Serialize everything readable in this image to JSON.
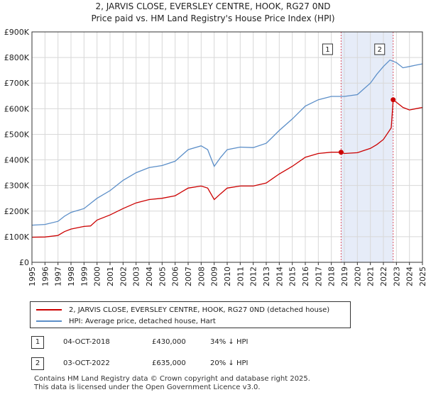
{
  "header": {
    "title": "2, JARVIS CLOSE, EVERSLEY CENTRE, HOOK, RG27 0ND",
    "subtitle": "Price paid vs. HM Land Registry's House Price Index (HPI)"
  },
  "chart_data": {
    "type": "line",
    "x_range": [
      1995,
      2025
    ],
    "y_range": [
      0,
      900000
    ],
    "x_ticks": [
      "1995",
      "1996",
      "1997",
      "1998",
      "1999",
      "2000",
      "2001",
      "2002",
      "2003",
      "2004",
      "2005",
      "2006",
      "2007",
      "2008",
      "2009",
      "2010",
      "2011",
      "2012",
      "2013",
      "2014",
      "2015",
      "2016",
      "2017",
      "2018",
      "2019",
      "2020",
      "2021",
      "2022",
      "2023",
      "2024",
      "2025"
    ],
    "y_ticks": [
      {
        "value": 0,
        "label": "£0"
      },
      {
        "value": 100000,
        "label": "£100K"
      },
      {
        "value": 200000,
        "label": "£200K"
      },
      {
        "value": 300000,
        "label": "£300K"
      },
      {
        "value": 400000,
        "label": "£400K"
      },
      {
        "value": 500000,
        "label": "£500K"
      },
      {
        "value": 600000,
        "label": "£600K"
      },
      {
        "value": 700000,
        "label": "£700K"
      },
      {
        "value": 800000,
        "label": "£800K"
      },
      {
        "value": 900000,
        "label": "£900K"
      }
    ],
    "shaded_period": [
      2018.75,
      2022.75
    ],
    "colors": {
      "property": "#cc0000",
      "hpi": "#5b8ec8",
      "shade": "#e6ecf8",
      "marker_line": "#dd5566"
    },
    "series": [
      {
        "name": "2, JARVIS CLOSE, EVERSLEY CENTRE, HOOK, RG27 0ND (detached house)",
        "color": "#cc0000",
        "points": [
          [
            1995,
            98000
          ],
          [
            1996,
            99000
          ],
          [
            1997,
            105000
          ],
          [
            1997.5,
            120000
          ],
          [
            1998,
            130000
          ],
          [
            1999,
            140000
          ],
          [
            1999.5,
            142000
          ],
          [
            2000,
            165000
          ],
          [
            2001,
            185000
          ],
          [
            2002,
            210000
          ],
          [
            2003,
            232000
          ],
          [
            2004,
            245000
          ],
          [
            2005,
            250000
          ],
          [
            2006,
            260000
          ],
          [
            2007,
            290000
          ],
          [
            2008,
            298000
          ],
          [
            2008.5,
            290000
          ],
          [
            2009,
            245000
          ],
          [
            2009.5,
            268000
          ],
          [
            2010,
            290000
          ],
          [
            2011,
            298000
          ],
          [
            2012,
            298000
          ],
          [
            2013,
            310000
          ],
          [
            2014,
            345000
          ],
          [
            2015,
            375000
          ],
          [
            2016,
            410000
          ],
          [
            2017,
            425000
          ],
          [
            2018,
            430000
          ],
          [
            2018.75,
            430000
          ],
          [
            2019,
            425000
          ],
          [
            2020,
            428000
          ],
          [
            2021,
            445000
          ],
          [
            2021.5,
            460000
          ],
          [
            2022,
            480000
          ],
          [
            2022.6,
            525000
          ],
          [
            2022.75,
            635000
          ],
          [
            2023,
            625000
          ],
          [
            2023.5,
            605000
          ],
          [
            2024,
            595000
          ],
          [
            2024.5,
            600000
          ],
          [
            2025,
            605000
          ]
        ]
      },
      {
        "name": "HPI: Average price, detached house, Hart",
        "color": "#5b8ec8",
        "points": [
          [
            1995,
            145000
          ],
          [
            1996,
            148000
          ],
          [
            1997,
            160000
          ],
          [
            1997.5,
            180000
          ],
          [
            1998,
            195000
          ],
          [
            1999,
            210000
          ],
          [
            2000,
            250000
          ],
          [
            2001,
            280000
          ],
          [
            2002,
            320000
          ],
          [
            2003,
            350000
          ],
          [
            2004,
            370000
          ],
          [
            2005,
            378000
          ],
          [
            2006,
            395000
          ],
          [
            2007,
            440000
          ],
          [
            2008,
            455000
          ],
          [
            2008.5,
            440000
          ],
          [
            2009,
            375000
          ],
          [
            2009.5,
            410000
          ],
          [
            2010,
            440000
          ],
          [
            2011,
            450000
          ],
          [
            2012,
            448000
          ],
          [
            2013,
            465000
          ],
          [
            2014,
            515000
          ],
          [
            2015,
            560000
          ],
          [
            2016,
            610000
          ],
          [
            2017,
            635000
          ],
          [
            2018,
            648000
          ],
          [
            2019,
            648000
          ],
          [
            2020,
            655000
          ],
          [
            2021,
            700000
          ],
          [
            2021.5,
            735000
          ],
          [
            2022,
            765000
          ],
          [
            2022.5,
            790000
          ],
          [
            2023,
            780000
          ],
          [
            2023.5,
            760000
          ],
          [
            2024,
            765000
          ],
          [
            2024.5,
            770000
          ],
          [
            2025,
            775000
          ]
        ]
      }
    ],
    "sales": [
      {
        "label": "1",
        "x": 2018.75,
        "value": 430000
      },
      {
        "label": "2",
        "x": 2022.75,
        "value": 635000
      }
    ]
  },
  "legend": {
    "property_label": "2, JARVIS CLOSE, EVERSLEY CENTRE, HOOK, RG27 0ND (detached house)",
    "hpi_label": "HPI: Average price, detached house, Hart"
  },
  "transactions": [
    {
      "num": "1",
      "date": "04-OCT-2018",
      "price": "£430,000",
      "hpi": "34% ↓ HPI"
    },
    {
      "num": "2",
      "date": "03-OCT-2022",
      "price": "£635,000",
      "hpi": "20% ↓ HPI"
    }
  ],
  "footer": {
    "line1": "Contains HM Land Registry data © Crown copyright and database right 2025.",
    "line2": "This data is licensed under the Open Government Licence v3.0."
  }
}
